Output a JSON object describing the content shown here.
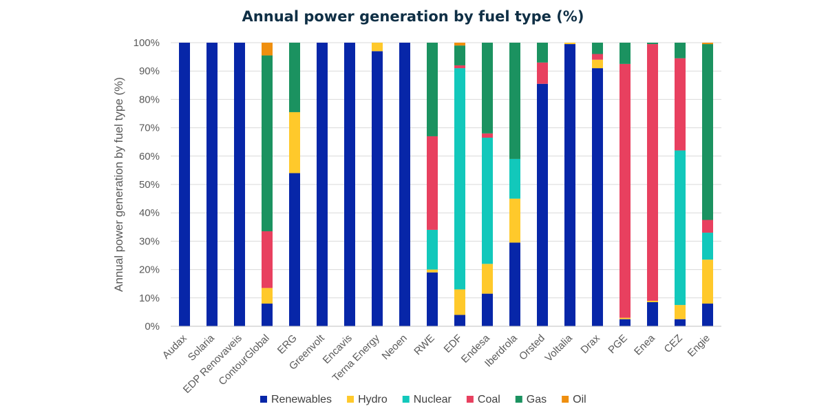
{
  "chart_data": {
    "type": "bar",
    "stacked": true,
    "title": "Annual power generation by fuel type (%)",
    "ylabel": "Annual power generation by fuel type (%)",
    "xlabel": "",
    "ylim": [
      0,
      100
    ],
    "yticks": [
      "0%",
      "10%",
      "20%",
      "30%",
      "40%",
      "50%",
      "60%",
      "70%",
      "80%",
      "90%",
      "100%"
    ],
    "grid": true,
    "legend_position": "bottom",
    "categories": [
      "Audax",
      "Solaria",
      "EDP Renovaveis",
      "ContourGlobal",
      "ERG",
      "Greenvolt",
      "Encavis",
      "Terna Energy",
      "Neoen",
      "RWE",
      "EDF",
      "Endesa",
      "Iberdrola",
      "Orsted",
      "Voltalia",
      "Drax",
      "PGE",
      "Enea",
      "CEZ",
      "Engie"
    ],
    "series": [
      {
        "name": "Renewables",
        "color": "#0726a8",
        "values": [
          100,
          100,
          100,
          8,
          54,
          100,
          100,
          97,
          100,
          19,
          4,
          11.5,
          29.5,
          85.5,
          99.5,
          91,
          2.5,
          8.5,
          2.5,
          8
        ]
      },
      {
        "name": "Hydro",
        "color": "#ffc92b",
        "values": [
          0,
          0,
          0,
          5.5,
          21.5,
          0,
          0,
          3,
          0,
          1,
          9,
          10.5,
          15.5,
          0,
          0.5,
          3,
          0.5,
          0.5,
          5,
          15.5
        ]
      },
      {
        "name": "Nuclear",
        "color": "#12c8bb",
        "values": [
          0,
          0,
          0,
          0,
          0,
          0,
          0,
          0,
          0,
          14,
          78,
          44.5,
          14,
          0,
          0,
          0,
          0,
          0,
          54.5,
          9.5
        ]
      },
      {
        "name": "Coal",
        "color": "#e8405f",
        "values": [
          0,
          0,
          0,
          20,
          0,
          0,
          0,
          0,
          0,
          33,
          1,
          1.5,
          0,
          7.5,
          0,
          2,
          89.5,
          90.5,
          32.5,
          4.5
        ]
      },
      {
        "name": "Gas",
        "color": "#1b9260",
        "values": [
          0,
          0,
          0,
          62,
          24.5,
          0,
          0,
          0,
          0,
          33,
          7,
          32,
          41,
          7,
          0,
          4,
          7.5,
          0.5,
          5.5,
          62
        ]
      },
      {
        "name": "Oil",
        "color": "#ef8f0f",
        "values": [
          0,
          0,
          0,
          4.5,
          0,
          0,
          0,
          0,
          0,
          0,
          1,
          0,
          0,
          0,
          0,
          0,
          0,
          0,
          0,
          0.5
        ]
      }
    ]
  }
}
